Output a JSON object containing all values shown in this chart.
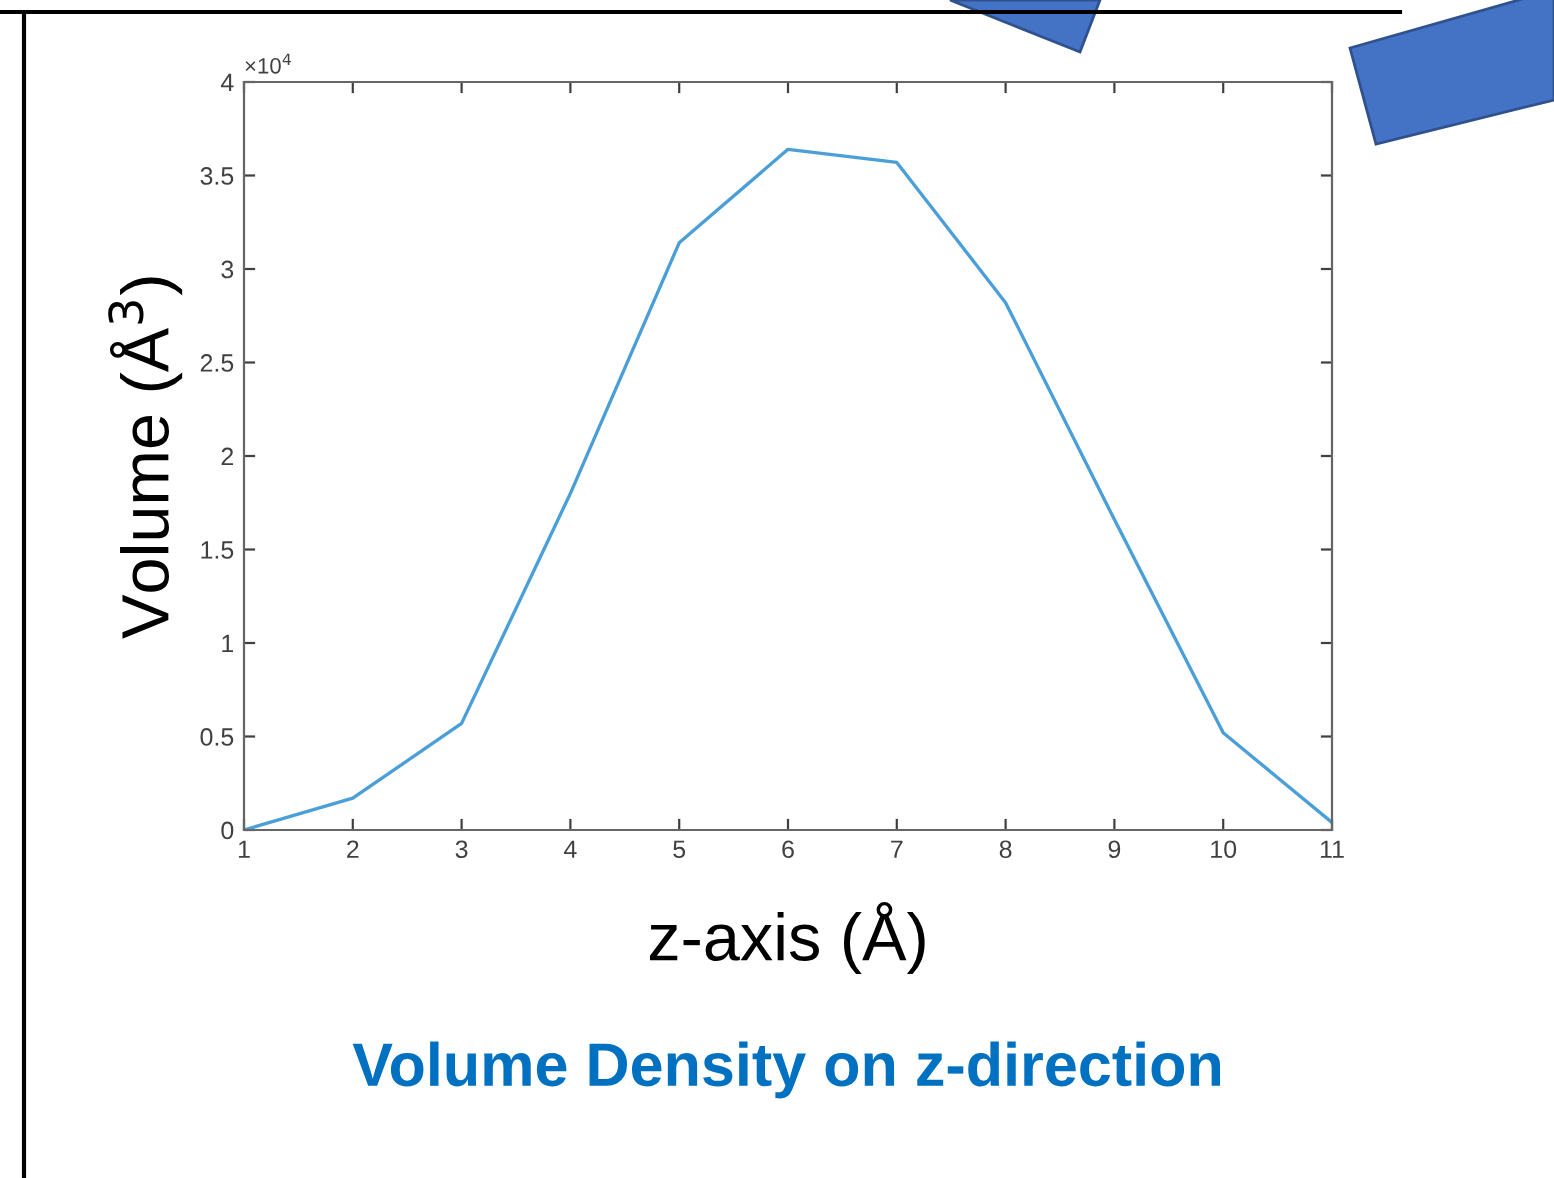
{
  "chart_data": {
    "type": "line",
    "title": "Volume Density on z-direction",
    "xlabel": "z-axis (Å)",
    "ylabel": "Volume (Å$^{3}$)",
    "x": [
      1,
      2,
      3,
      4,
      5,
      6,
      7,
      8,
      9,
      10,
      11
    ],
    "series": [
      {
        "color": "#4a9fd8",
        "values": [
          0,
          0.17,
          0.57,
          1.8,
          3.14,
          3.64,
          3.57,
          2.82,
          1.66,
          0.52,
          0.04
        ]
      }
    ],
    "xlim": [
      1,
      11
    ],
    "xticks": [
      1,
      2,
      3,
      4,
      5,
      6,
      7,
      8,
      9,
      10,
      11
    ],
    "ylim": [
      0,
      4
    ],
    "yticks": [
      0,
      0.5,
      1,
      1.5,
      2,
      2.5,
      3,
      3.5,
      4
    ],
    "annotations": [
      "×10$^{4}$"
    ],
    "grid": false,
    "legend": false,
    "marker": "none",
    "line_style": "solid"
  }
}
